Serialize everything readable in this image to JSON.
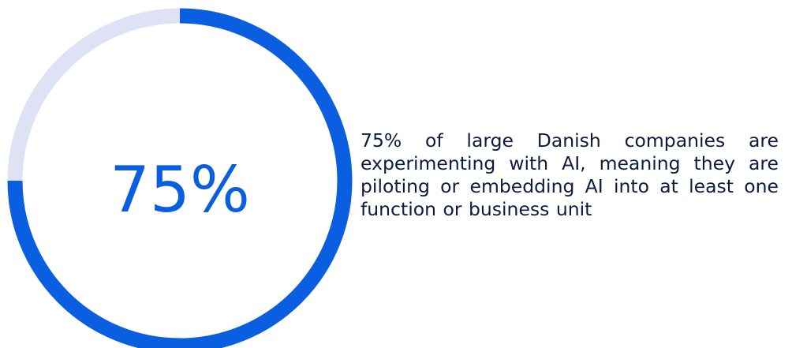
{
  "chart_data": {
    "type": "pie",
    "values": [
      75,
      25
    ],
    "center_label": "75%",
    "colors": {
      "filled": "#0a5fe0",
      "remainder": "#dde3f5",
      "label": "#0a5fe0"
    }
  },
  "description": "75% of large Danish companies are experimenting with AI, meaning they are piloting or embedding AI into at least one function or business unit"
}
